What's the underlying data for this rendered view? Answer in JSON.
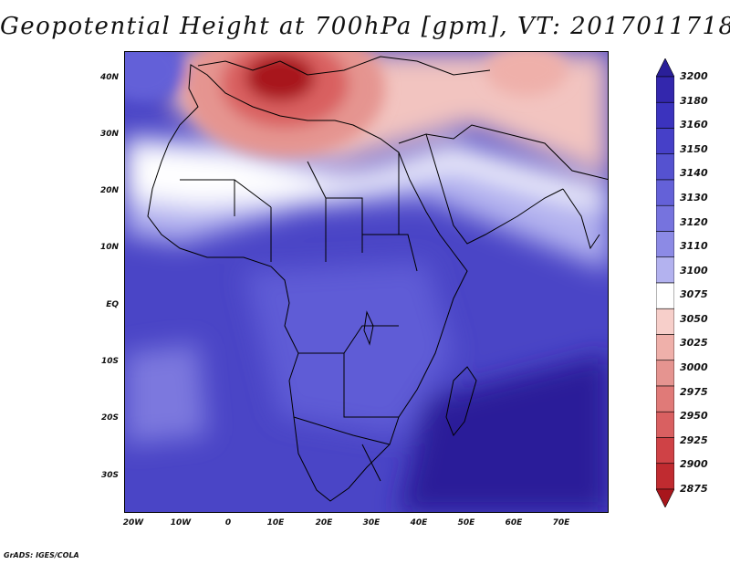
{
  "title": "Geopotential Height at 700hPa [gpm], VT: 2017011718",
  "lat_labels": [
    "40N",
    "30N",
    "20N",
    "10N",
    "EQ",
    "10S",
    "20S",
    "30S"
  ],
  "lon_labels": [
    "20W",
    "10W",
    "0",
    "10E",
    "20E",
    "30E",
    "40E",
    "50E",
    "60E",
    "70E"
  ],
  "colorbar": {
    "levels": [
      "3200",
      "3180",
      "3160",
      "3150",
      "3140",
      "3130",
      "3120",
      "3110",
      "3100",
      "3075",
      "3050",
      "3025",
      "3000",
      "2975",
      "2950",
      "2925",
      "2900",
      "2875"
    ],
    "colors": [
      "#2a1f99",
      "#3327ad",
      "#3b33be",
      "#4640c8",
      "#5552d0",
      "#6461d8",
      "#7673de",
      "#8c8ae5",
      "#b3b2ef",
      "#ffffff",
      "#f7cfca",
      "#efb0aa",
      "#e59490",
      "#e07a78",
      "#d96061",
      "#cf4246",
      "#c02b30",
      "#a8161c"
    ]
  },
  "credit": "GrADS: IGES/COLA"
}
